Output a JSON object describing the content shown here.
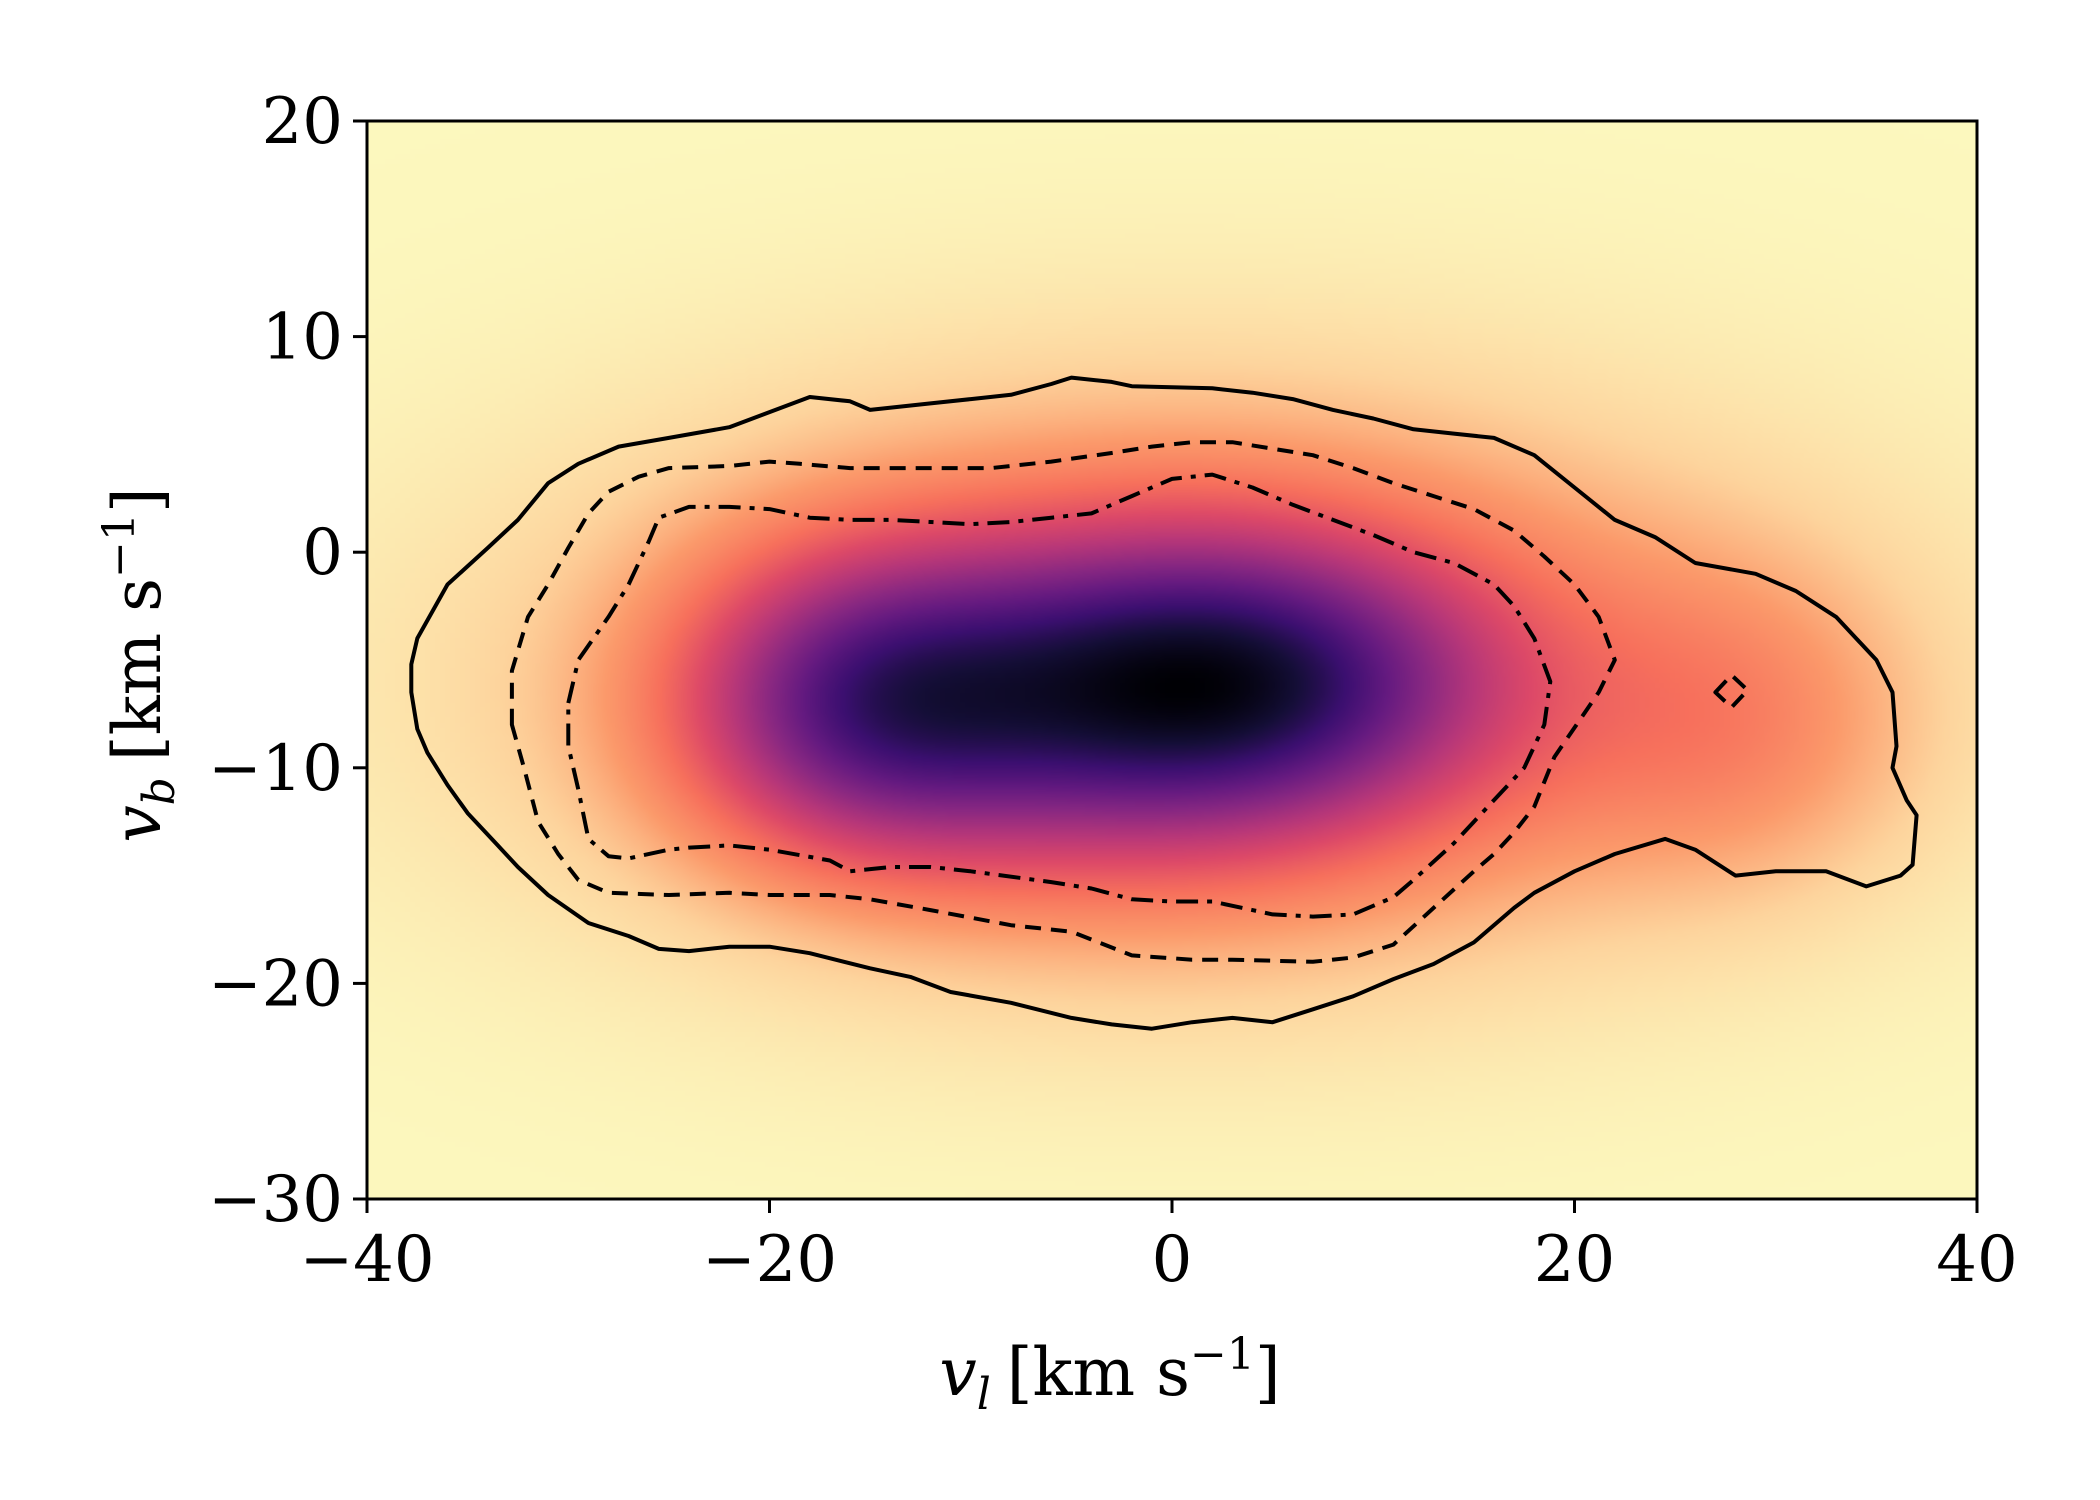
{
  "chart_data": {
    "type": "heatmap",
    "title": "",
    "xlabel": {
      "var": "v",
      "sub": "l",
      "unit": "[km s",
      "exp": "−1",
      "close": "]"
    },
    "ylabel": {
      "var": "v",
      "sub": "b",
      "unit": "[km s",
      "exp": "−1",
      "close": "]"
    },
    "xlim": [
      -40,
      40
    ],
    "ylim": [
      -30,
      20
    ],
    "x_ticks": [
      -40,
      -20,
      0,
      20,
      40
    ],
    "x_tick_labels": [
      "−40",
      "−20",
      "0",
      "20",
      "40"
    ],
    "y_ticks": [
      -30,
      -20,
      -10,
      0,
      10,
      20
    ],
    "y_tick_labels": [
      "−30",
      "−20",
      "−10",
      "0",
      "10",
      "20"
    ],
    "colormap": [
      "#fcf8be",
      "#fdd49d",
      "#fb9a6b",
      "#f7705c",
      "#dd4968",
      "#b73779",
      "#8c2981",
      "#641a80",
      "#3b0f70",
      "#140e36",
      "#000004"
    ],
    "density_peaks": [
      {
        "vl": 3,
        "vb": -6,
        "amplitude": 1.0,
        "sigma_vl": 8,
        "sigma_vb": 4.2
      },
      {
        "vl": -15,
        "vb": -7,
        "amplitude": 0.85,
        "sigma_vl": 6,
        "sigma_vb": 4.5
      },
      {
        "vl": -5,
        "vb": -7,
        "amplitude": 0.55,
        "sigma_vl": 10,
        "sigma_vb": 5
      },
      {
        "vl": 1,
        "vb": -6,
        "amplitude": 0.6,
        "sigma_vl": 18,
        "sigma_vb": 8
      },
      {
        "vl": 28,
        "vb": -8,
        "amplitude": 0.22,
        "sigma_vl": 6,
        "sigma_vb": 5
      }
    ],
    "contours": [
      {
        "style": "solid",
        "points": [
          [
            -37.5,
            -4
          ],
          [
            -36,
            -1.5
          ],
          [
            -34,
            0.2
          ],
          [
            -32.5,
            1.5
          ],
          [
            -31,
            3.2
          ],
          [
            -29.5,
            4.1
          ],
          [
            -27.5,
            4.9
          ],
          [
            -25,
            5.3
          ],
          [
            -22,
            5.8
          ],
          [
            -20,
            6.5
          ],
          [
            -18,
            7.2
          ],
          [
            -16,
            7
          ],
          [
            -15,
            6.6
          ],
          [
            -12,
            6.9
          ],
          [
            -10,
            7.1
          ],
          [
            -8,
            7.3
          ],
          [
            -6,
            7.8
          ],
          [
            -5,
            8.1
          ],
          [
            -3,
            7.9
          ],
          [
            -2,
            7.7
          ],
          [
            2,
            7.6
          ],
          [
            4,
            7.4
          ],
          [
            6,
            7.1
          ],
          [
            8,
            6.6
          ],
          [
            10,
            6.2
          ],
          [
            12,
            5.7
          ],
          [
            14,
            5.5
          ],
          [
            16,
            5.3
          ],
          [
            18,
            4.5
          ],
          [
            20,
            3
          ],
          [
            22,
            1.5
          ],
          [
            24,
            0.7
          ],
          [
            26,
            -0.5
          ],
          [
            29,
            -1
          ],
          [
            31,
            -1.8
          ],
          [
            33,
            -3
          ],
          [
            35,
            -5
          ],
          [
            35.8,
            -6.5
          ],
          [
            36,
            -9
          ],
          [
            35.8,
            -10
          ],
          [
            36.5,
            -11.5
          ],
          [
            37,
            -12.2
          ],
          [
            36.8,
            -14.5
          ],
          [
            36.2,
            -15
          ],
          [
            34.5,
            -15.5
          ],
          [
            32.5,
            -14.8
          ],
          [
            30,
            -14.8
          ],
          [
            28,
            -15
          ],
          [
            26,
            -13.8
          ],
          [
            24.5,
            -13.3
          ],
          [
            22,
            -14
          ],
          [
            20,
            -14.8
          ],
          [
            18,
            -15.8
          ],
          [
            17,
            -16.5
          ],
          [
            15,
            -18.1
          ],
          [
            13,
            -19.1
          ],
          [
            11,
            -19.8
          ],
          [
            9,
            -20.6
          ],
          [
            7,
            -21.2
          ],
          [
            5,
            -21.8
          ],
          [
            3,
            -21.6
          ],
          [
            1,
            -21.8
          ],
          [
            -1,
            -22.1
          ],
          [
            -3,
            -21.9
          ],
          [
            -5,
            -21.6
          ],
          [
            -8,
            -20.9
          ],
          [
            -11,
            -20.4
          ],
          [
            -13,
            -19.7
          ],
          [
            -15,
            -19.3
          ],
          [
            -18,
            -18.6
          ],
          [
            -20,
            -18.3
          ],
          [
            -22,
            -18.3
          ],
          [
            -24,
            -18.5
          ],
          [
            -25.5,
            -18.4
          ],
          [
            -27,
            -17.8
          ],
          [
            -29,
            -17.2
          ],
          [
            -31,
            -15.9
          ],
          [
            -32.5,
            -14.6
          ],
          [
            -33.5,
            -13.6
          ],
          [
            -35,
            -12.1
          ],
          [
            -36,
            -10.8
          ],
          [
            -37,
            -9.3
          ],
          [
            -37.5,
            -8.2
          ],
          [
            -37.8,
            -6.5
          ],
          [
            -37.8,
            -5.2
          ],
          [
            -37.5,
            -4
          ]
        ]
      },
      {
        "style": "dashed",
        "points": [
          [
            -32.8,
            -8
          ],
          [
            -32.8,
            -5.5
          ],
          [
            -32,
            -3
          ],
          [
            -31,
            -1.5
          ],
          [
            -30,
            0.2
          ],
          [
            -29,
            1.8
          ],
          [
            -28,
            2.8
          ],
          [
            -26.5,
            3.5
          ],
          [
            -25,
            3.9
          ],
          [
            -22,
            4
          ],
          [
            -20,
            4.2
          ],
          [
            -18.5,
            4.1
          ],
          [
            -16,
            3.9
          ],
          [
            -12,
            3.9
          ],
          [
            -9,
            3.9
          ],
          [
            -6,
            4.2
          ],
          [
            -3,
            4.6
          ],
          [
            -1,
            4.9
          ],
          [
            1,
            5.1
          ],
          [
            3,
            5.1
          ],
          [
            5,
            4.8
          ],
          [
            7,
            4.5
          ],
          [
            9,
            3.9
          ],
          [
            11,
            3.2
          ],
          [
            13,
            2.6
          ],
          [
            15,
            2
          ],
          [
            17,
            1
          ],
          [
            18.5,
            -0.2
          ],
          [
            20,
            -1.5
          ],
          [
            21.2,
            -3
          ],
          [
            22,
            -5
          ],
          [
            21.2,
            -6.5
          ],
          [
            19,
            -9.5
          ],
          [
            18,
            -11.8
          ],
          [
            17,
            -13
          ],
          [
            16,
            -14
          ],
          [
            15,
            -14.8
          ],
          [
            13,
            -16.5
          ],
          [
            11,
            -18.2
          ],
          [
            9,
            -18.8
          ],
          [
            7,
            -19
          ],
          [
            3,
            -18.9
          ],
          [
            1,
            -18.9
          ],
          [
            -2,
            -18.7
          ],
          [
            -5,
            -17.6
          ],
          [
            -8,
            -17.3
          ],
          [
            -12,
            -16.6
          ],
          [
            -15,
            -16.1
          ],
          [
            -17,
            -15.9
          ],
          [
            -20,
            -15.9
          ],
          [
            -22,
            -15.8
          ],
          [
            -25,
            -15.9
          ],
          [
            -28,
            -15.8
          ],
          [
            -29.5,
            -15.2
          ],
          [
            -30.5,
            -14
          ],
          [
            -31.5,
            -12.5
          ],
          [
            -32.2,
            -10
          ],
          [
            -32.8,
            -8
          ]
        ]
      },
      {
        "style": "dashdot",
        "points": [
          [
            -30,
            -7
          ],
          [
            -29.5,
            -5
          ],
          [
            -28,
            -3
          ],
          [
            -27,
            -1.5
          ],
          [
            -26,
            0.5
          ],
          [
            -25.5,
            1.6
          ],
          [
            -24,
            2.1
          ],
          [
            -22,
            2.1
          ],
          [
            -20,
            2
          ],
          [
            -18,
            1.6
          ],
          [
            -16,
            1.5
          ],
          [
            -14,
            1.5
          ],
          [
            -12,
            1.4
          ],
          [
            -10,
            1.3
          ],
          [
            -8,
            1.4
          ],
          [
            -6,
            1.6
          ],
          [
            -4,
            1.8
          ],
          [
            -2,
            2.6
          ],
          [
            0,
            3.4
          ],
          [
            2,
            3.6
          ],
          [
            4,
            3
          ],
          [
            6,
            2.2
          ],
          [
            8,
            1.5
          ],
          [
            10,
            0.8
          ],
          [
            12,
            0
          ],
          [
            14,
            -0.5
          ],
          [
            16,
            -1.5
          ],
          [
            17,
            -2.5
          ],
          [
            18,
            -4
          ],
          [
            18.8,
            -6
          ],
          [
            18.5,
            -8
          ],
          [
            17.5,
            -10
          ],
          [
            16,
            -11.5
          ],
          [
            15,
            -12.5
          ],
          [
            14,
            -13.5
          ],
          [
            12,
            -15.2
          ],
          [
            11,
            -16
          ],
          [
            9,
            -16.8
          ],
          [
            7,
            -16.9
          ],
          [
            5,
            -16.8
          ],
          [
            2,
            -16.2
          ],
          [
            0,
            -16.2
          ],
          [
            -2,
            -16.1
          ],
          [
            -4,
            -15.6
          ],
          [
            -6,
            -15.3
          ],
          [
            -10,
            -14.8
          ],
          [
            -12,
            -14.6
          ],
          [
            -14,
            -14.6
          ],
          [
            -16,
            -14.8
          ],
          [
            -17,
            -14.3
          ],
          [
            -20,
            -13.8
          ],
          [
            -22,
            -13.6
          ],
          [
            -24,
            -13.7
          ],
          [
            -25,
            -13.8
          ],
          [
            -27,
            -14.2
          ],
          [
            -28,
            -14.1
          ],
          [
            -29,
            -13.3
          ],
          [
            -29.5,
            -11
          ],
          [
            -30,
            -9
          ],
          [
            -30,
            -7
          ]
        ]
      },
      {
        "style": "dashed",
        "points": [
          [
            27,
            -6.5
          ],
          [
            27.8,
            -5.7
          ],
          [
            28.6,
            -6.4
          ],
          [
            27.8,
            -7.2
          ],
          [
            27,
            -6.5
          ]
        ]
      }
    ]
  }
}
